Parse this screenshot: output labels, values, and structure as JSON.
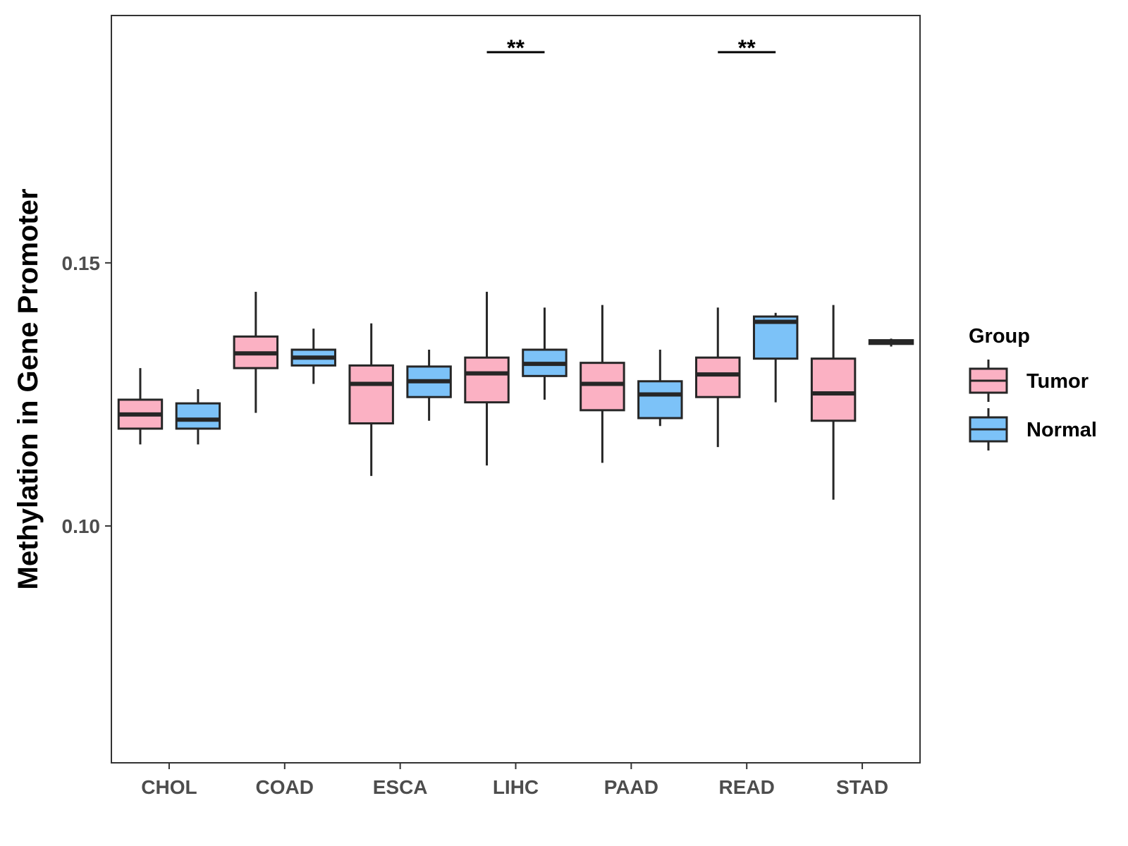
{
  "chart_data": {
    "type": "boxplot",
    "title": "",
    "xlabel": "",
    "ylabel": "Methylation in Gene Promoter",
    "ylim": [
      0.055,
      0.197
    ],
    "yticks": [
      0.1,
      0.15
    ],
    "ytick_labels": [
      "0.10",
      "0.15"
    ],
    "categories": [
      "CHOL",
      "COAD",
      "ESCA",
      "LIHC",
      "PAAD",
      "READ",
      "STAD"
    ],
    "legend": {
      "title": "Group",
      "position": "right",
      "entries": [
        {
          "name": "Tumor",
          "color": "#FBB1C3"
        },
        {
          "name": "Normal",
          "color": "#7CC2F8"
        }
      ]
    },
    "series": [
      {
        "name": "Tumor",
        "color": "#FBB1C3",
        "boxes": [
          {
            "category": "CHOL",
            "min": 0.1155,
            "q1": 0.1185,
            "median": 0.1212,
            "q3": 0.124,
            "max": 0.13
          },
          {
            "category": "COAD",
            "min": 0.1215,
            "q1": 0.13,
            "median": 0.1328,
            "q3": 0.136,
            "max": 0.1445
          },
          {
            "category": "ESCA",
            "min": 0.1095,
            "q1": 0.1195,
            "median": 0.127,
            "q3": 0.1305,
            "max": 0.1385
          },
          {
            "category": "LIHC",
            "min": 0.1115,
            "q1": 0.1235,
            "median": 0.129,
            "q3": 0.132,
            "max": 0.1445
          },
          {
            "category": "PAAD",
            "min": 0.112,
            "q1": 0.122,
            "median": 0.127,
            "q3": 0.131,
            "max": 0.142
          },
          {
            "category": "READ",
            "min": 0.115,
            "q1": 0.1245,
            "median": 0.1288,
            "q3": 0.132,
            "max": 0.1415
          },
          {
            "category": "STAD",
            "min": 0.105,
            "q1": 0.12,
            "median": 0.1252,
            "q3": 0.1318,
            "max": 0.142
          }
        ]
      },
      {
        "name": "Normal",
        "color": "#7CC2F8",
        "boxes": [
          {
            "category": "CHOL",
            "min": 0.1155,
            "q1": 0.1185,
            "median": 0.1202,
            "q3": 0.1233,
            "max": 0.126
          },
          {
            "category": "COAD",
            "min": 0.127,
            "q1": 0.1305,
            "median": 0.132,
            "q3": 0.1335,
            "max": 0.1375
          },
          {
            "category": "ESCA",
            "min": 0.12,
            "q1": 0.1245,
            "median": 0.1275,
            "q3": 0.1303,
            "max": 0.1335
          },
          {
            "category": "LIHC",
            "min": 0.124,
            "q1": 0.1285,
            "median": 0.1308,
            "q3": 0.1335,
            "max": 0.1415
          },
          {
            "category": "PAAD",
            "min": 0.119,
            "q1": 0.1205,
            "median": 0.125,
            "q3": 0.1275,
            "max": 0.1335
          },
          {
            "category": "READ",
            "min": 0.1235,
            "q1": 0.1318,
            "median": 0.1388,
            "q3": 0.1398,
            "max": 0.1405
          },
          {
            "category": "STAD",
            "min": 0.1341,
            "q1": 0.1346,
            "median": 0.135,
            "q3": 0.1353,
            "max": 0.1356
          }
        ]
      }
    ],
    "annotations": [
      {
        "category": "LIHC",
        "label": "**"
      },
      {
        "category": "READ",
        "label": "**"
      }
    ]
  }
}
